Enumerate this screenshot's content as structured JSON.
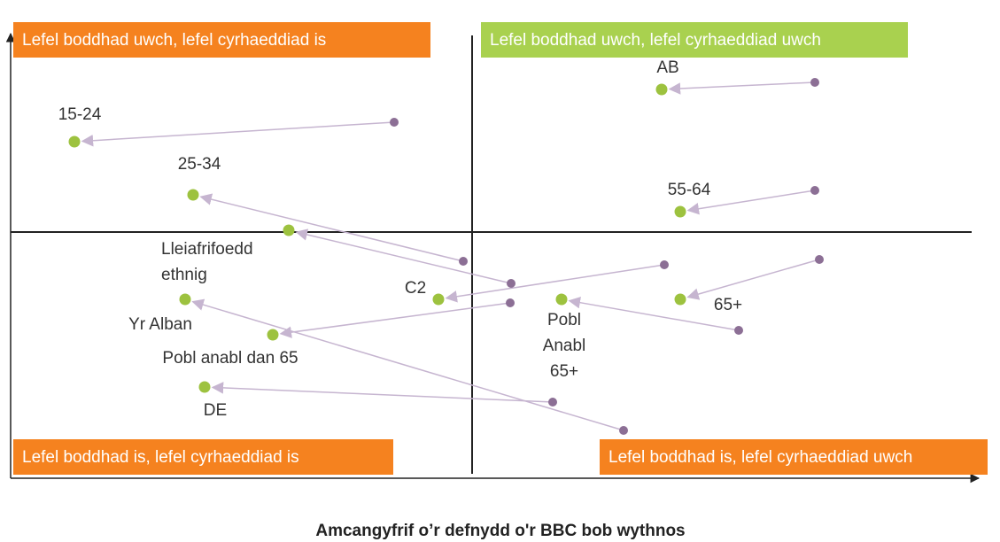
{
  "quadrants": [
    "Lefel boddhad uwch, lefel cyrhaeddiad is",
    "Lefel boddhad uwch, lefel cyrhaeddiad uwch",
    "Lefel boddhad is, lefel cyrhaeddiad is",
    "Lefel boddhad is, lefel cyrhaeddiad uwch"
  ],
  "nodes": [
    {
      "label": [
        "AB"
      ]
    },
    {
      "label": [
        "15-24"
      ]
    },
    {
      "label": [
        "25-34"
      ]
    },
    {
      "label": [
        "55-64"
      ]
    },
    {
      "label": [
        "Lleiafrifoedd",
        "ethnig"
      ]
    },
    {
      "label": [
        "C2"
      ]
    },
    {
      "label": [
        "65+"
      ]
    },
    {
      "label": [
        "Yr Alban"
      ]
    },
    {
      "label": [
        "Pobl anabl dan 65"
      ]
    },
    {
      "label": [
        "Pobl",
        "Anabl",
        "65+"
      ]
    },
    {
      "label": [
        "DE"
      ]
    }
  ],
  "x_axis_label": "Amcangyfrif o’r defnydd o'r BBC bob wythnos"
}
